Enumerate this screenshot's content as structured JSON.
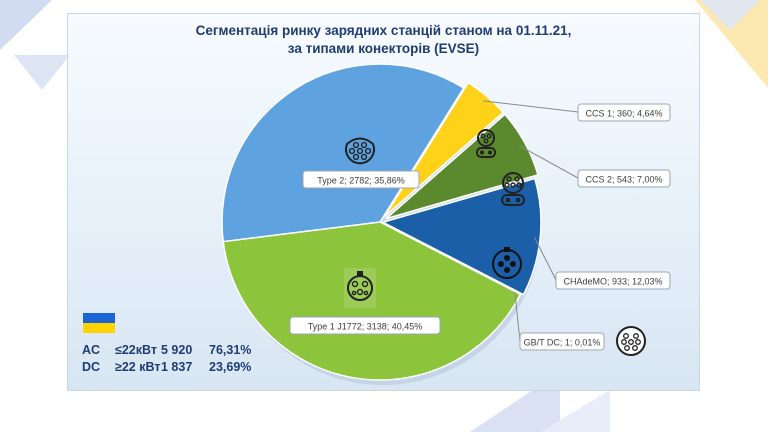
{
  "chart_data": {
    "type": "pie",
    "title": [
      "Сегментація ринку зарядних станцій станом на 01.11.21,",
      "за типами конекторів (EVSE)"
    ],
    "slices": [
      {
        "name": "CCS 1",
        "value": 360,
        "percent": "4,64%",
        "label": "CCS 1; 360; 4,64%",
        "color": "#ffd21a"
      },
      {
        "name": "CCS 2",
        "value": 543,
        "percent": "7,00%",
        "label": "CCS 2; 543; 7,00%",
        "color": "#5b8a2e"
      },
      {
        "name": "CHAdeMO",
        "value": 933,
        "percent": "12,03%",
        "label": "CHAdeMO; 933; 12,03%",
        "color": "#1a5fa8"
      },
      {
        "name": "GB/T DC",
        "value": 1,
        "percent": "0,01%",
        "label": "GB/T DC; 1; 0,01%",
        "color": "#1a4a7a"
      },
      {
        "name": "Type 1  J1772",
        "value": 3138,
        "percent": "40,45%",
        "label": "Type 1  J1772; 3138; 40,45%",
        "color": "#8cc43c"
      },
      {
        "name": "Type 2",
        "value": 2782,
        "percent": "35,86%",
        "label": "Type 2; 2782; 35,86%",
        "color": "#5fa2e0"
      }
    ],
    "summary": [
      {
        "type": "AC",
        "power": "≤22кВт",
        "count": "5 920",
        "percent": "76,31%"
      },
      {
        "type": "DC",
        "power": "≥22 кВт",
        "count": "1 837",
        "percent": "23,69%"
      }
    ]
  }
}
